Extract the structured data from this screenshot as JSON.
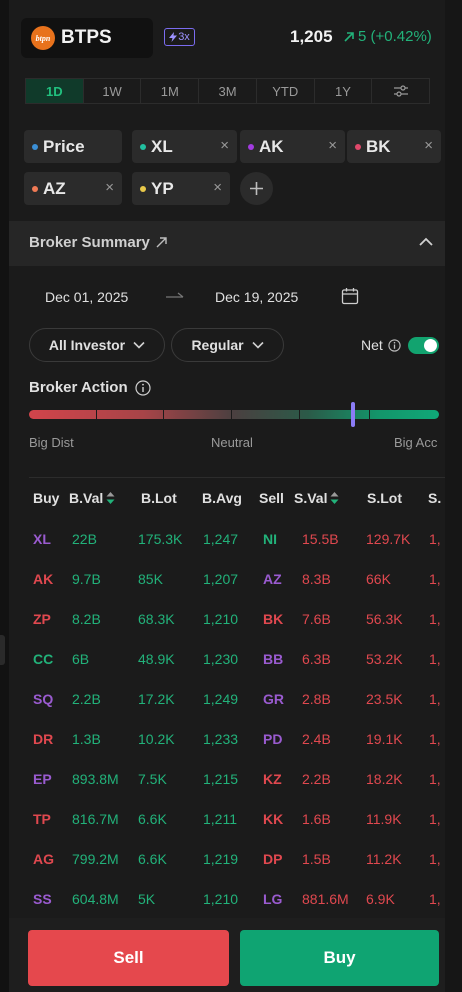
{
  "header": {
    "logo_text": "btpn",
    "ticker": "BTPS",
    "leverage": "3x",
    "price": "1,205",
    "change": "5 (+0.42%)"
  },
  "timeframes": [
    "1D",
    "1W",
    "1M",
    "3M",
    "YTD",
    "1Y"
  ],
  "timeframe_active": "1D",
  "chips": [
    {
      "label": "Price",
      "color": "#3b8fd6",
      "removable": false
    },
    {
      "label": "XL",
      "color": "#22c0a0",
      "removable": true
    },
    {
      "label": "AK",
      "color": "#a23be0",
      "removable": true
    },
    {
      "label": "BK",
      "color": "#e0486a",
      "removable": true
    },
    {
      "label": "AZ",
      "color": "#f07a55",
      "removable": true
    },
    {
      "label": "YP",
      "color": "#e8c84a",
      "removable": true
    }
  ],
  "remove_glyph": "×",
  "broker_summary": {
    "title": "Broker Summary",
    "date_from": "Dec 01, 2025",
    "date_to": "Dec 19, 2025",
    "investor_filter": "All Investor",
    "market_filter": "Regular",
    "net_label": "Net",
    "net_enabled": true
  },
  "broker_action": {
    "title": "Broker Action",
    "labels": [
      "Big Dist",
      "Neutral",
      "Big Acc"
    ],
    "level": 0.79
  },
  "table": {
    "headers": [
      "Buy",
      "B.Val",
      "B.Lot",
      "B.Avg",
      "Sell",
      "S.Val",
      "S.Lot",
      "S."
    ],
    "rows": [
      {
        "buy": "XL",
        "bc": "purple",
        "bval": "22B",
        "blot": "175.3K",
        "bavg": "1,247",
        "sell": "NI",
        "sc": "green",
        "sval": "15.5B",
        "slot": "129.7K",
        "savg": "1,"
      },
      {
        "buy": "AK",
        "bc": "red",
        "bval": "9.7B",
        "blot": "85K",
        "bavg": "1,207",
        "sell": "AZ",
        "sc": "purple",
        "sval": "8.3B",
        "slot": "66K",
        "savg": "1,"
      },
      {
        "buy": "ZP",
        "bc": "red",
        "bval": "8.2B",
        "blot": "68.3K",
        "bavg": "1,210",
        "sell": "BK",
        "sc": "red",
        "sval": "7.6B",
        "slot": "56.3K",
        "savg": "1,"
      },
      {
        "buy": "CC",
        "bc": "green",
        "bval": "6B",
        "blot": "48.9K",
        "bavg": "1,230",
        "sell": "BB",
        "sc": "purple",
        "sval": "6.3B",
        "slot": "53.2K",
        "savg": "1,"
      },
      {
        "buy": "SQ",
        "bc": "purple",
        "bval": "2.2B",
        "blot": "17.2K",
        "bavg": "1,249",
        "sell": "GR",
        "sc": "purple",
        "sval": "2.8B",
        "slot": "23.5K",
        "savg": "1,"
      },
      {
        "buy": "DR",
        "bc": "red",
        "bval": "1.3B",
        "blot": "10.2K",
        "bavg": "1,233",
        "sell": "PD",
        "sc": "purple",
        "sval": "2.4B",
        "slot": "19.1K",
        "savg": "1,"
      },
      {
        "buy": "EP",
        "bc": "purple",
        "bval": "893.8M",
        "blot": "7.5K",
        "bavg": "1,215",
        "sell": "KZ",
        "sc": "red",
        "sval": "2.2B",
        "slot": "18.2K",
        "savg": "1,"
      },
      {
        "buy": "TP",
        "bc": "red",
        "bval": "816.7M",
        "blot": "6.6K",
        "bavg": "1,211",
        "sell": "KK",
        "sc": "red",
        "sval": "1.6B",
        "slot": "11.9K",
        "savg": "1,"
      },
      {
        "buy": "AG",
        "bc": "red",
        "bval": "799.2M",
        "blot": "6.6K",
        "bavg": "1,219",
        "sell": "DP",
        "sc": "red",
        "sval": "1.5B",
        "slot": "11.2K",
        "savg": "1,"
      },
      {
        "buy": "SS",
        "bc": "purple",
        "bval": "604.8M",
        "blot": "5K",
        "bavg": "1,210",
        "sell": "LG",
        "sc": "purple",
        "sval": "881.6M",
        "slot": "6.9K",
        "savg": "1,"
      }
    ]
  },
  "actions": {
    "sell": "Sell",
    "buy": "Buy"
  }
}
